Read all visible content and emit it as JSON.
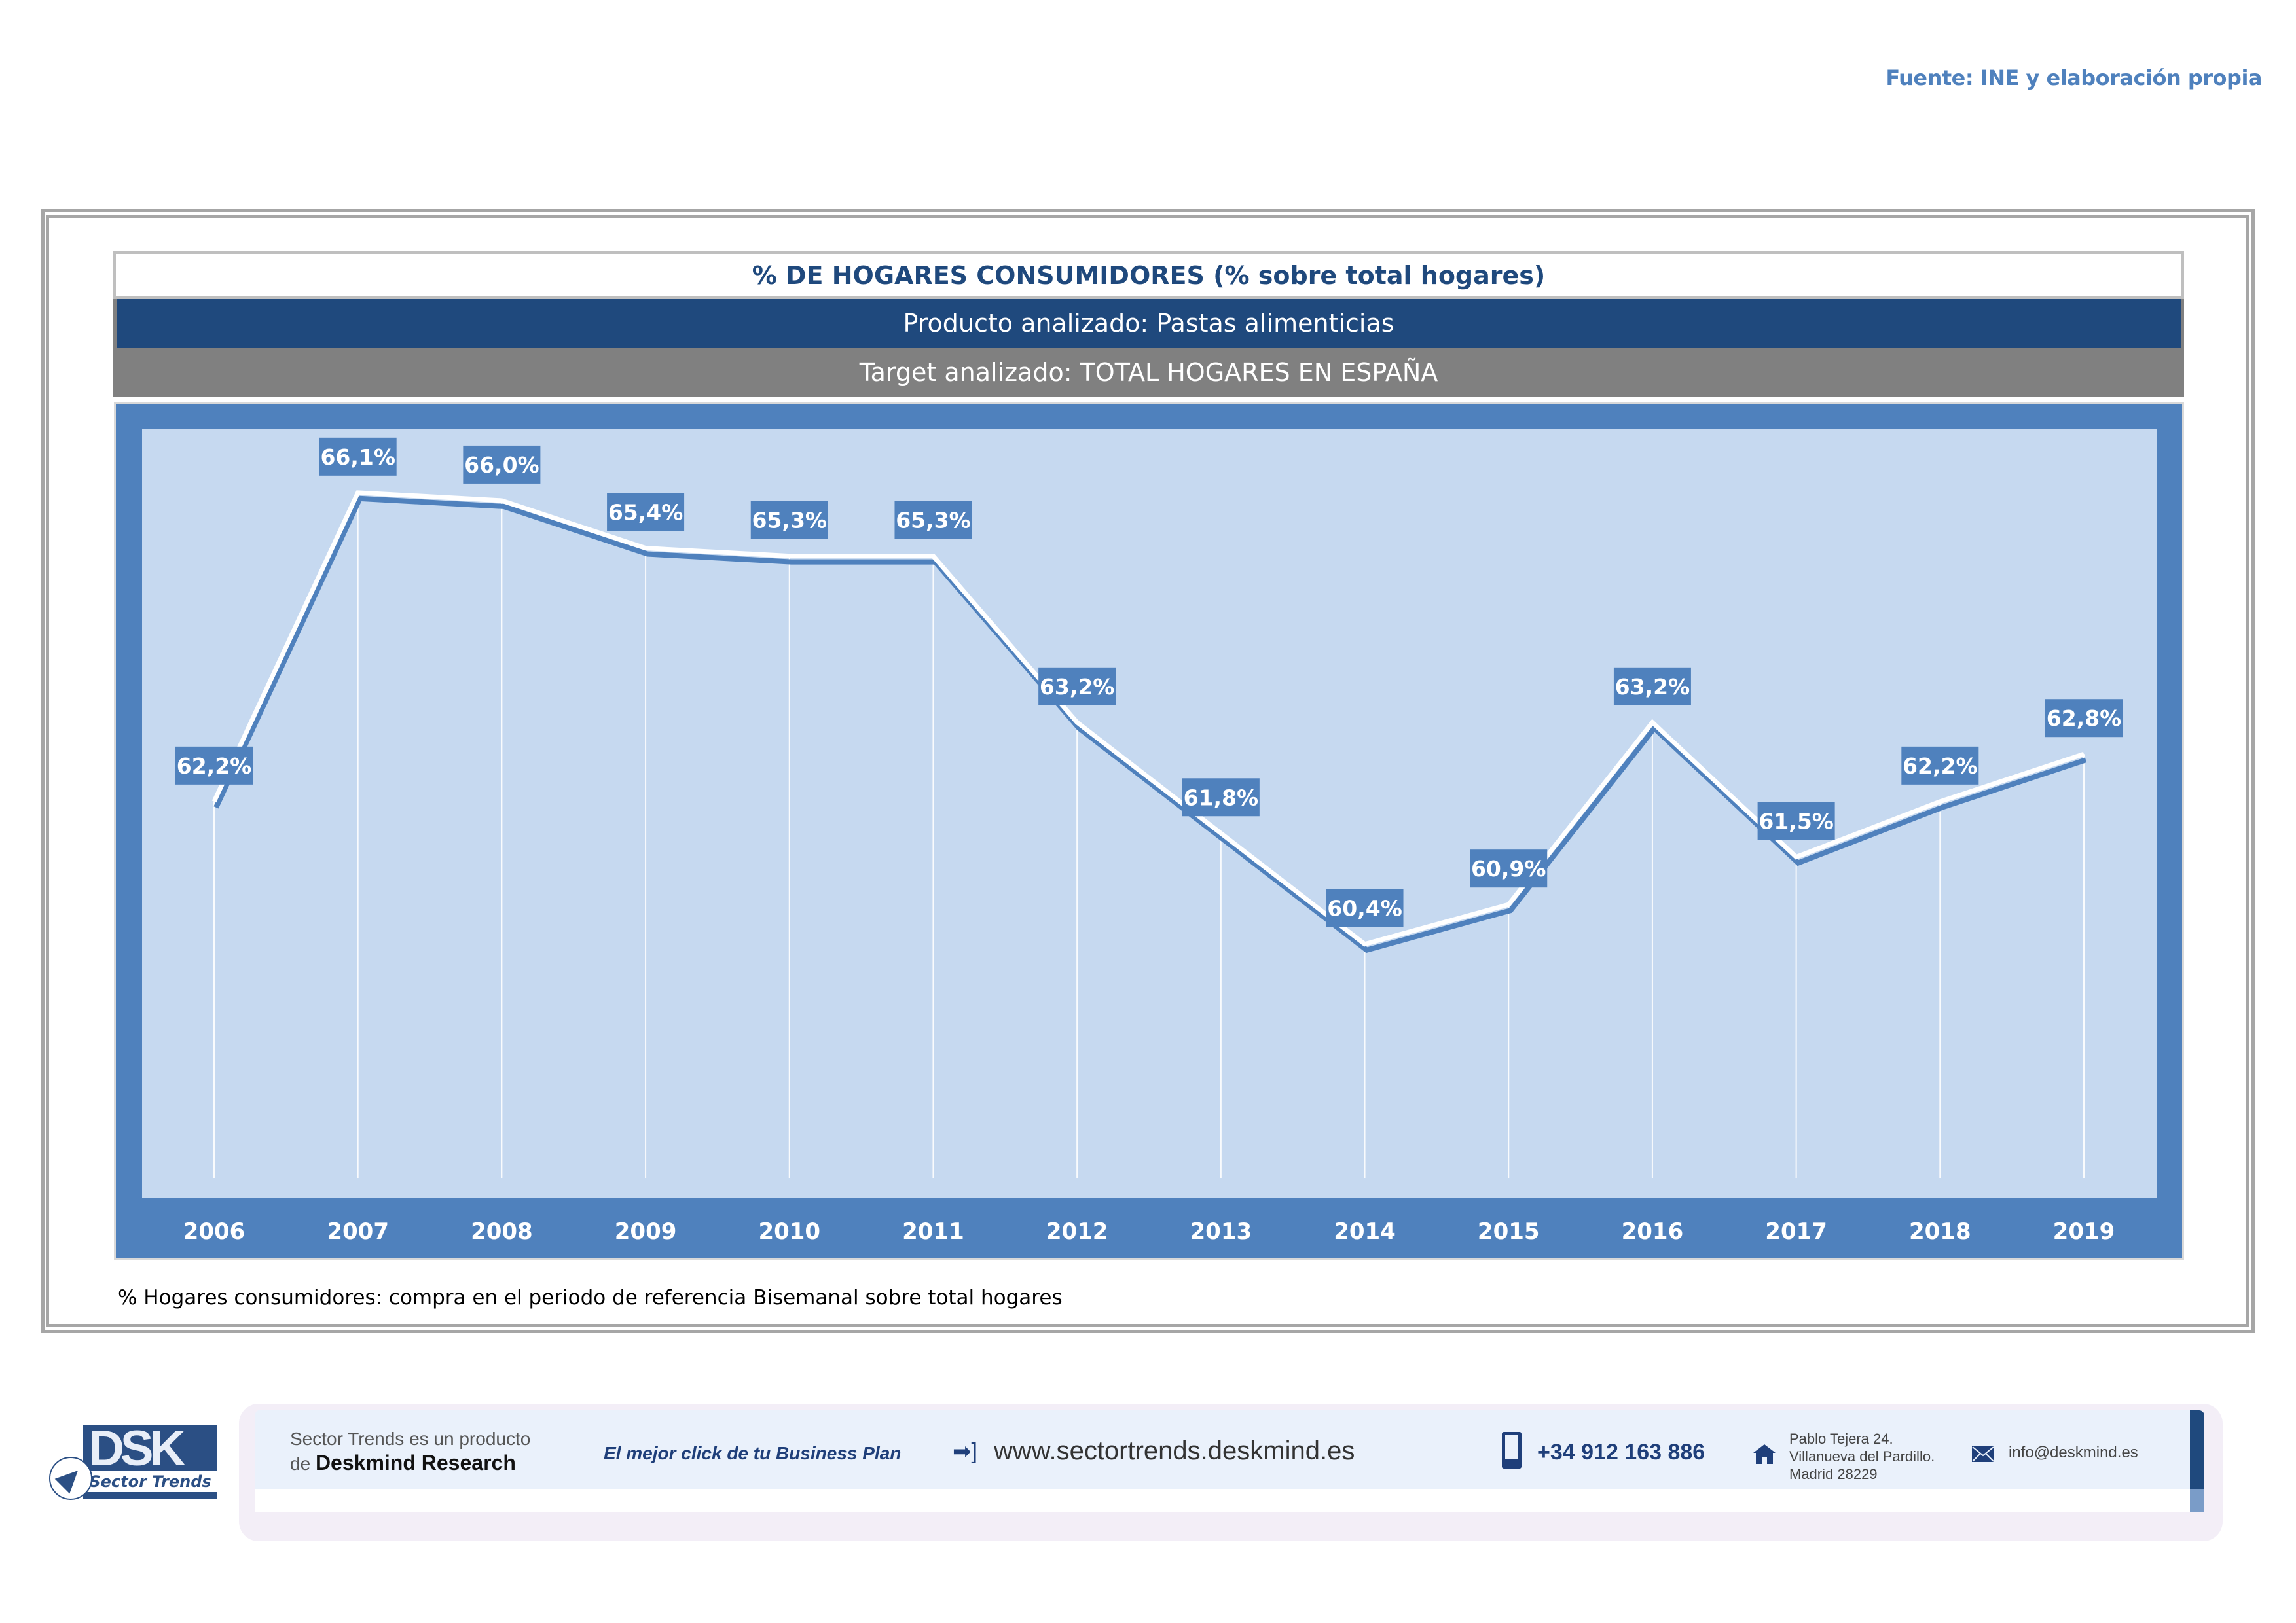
{
  "source": "Fuente: INE y elaboración propia",
  "header": {
    "title": "% DE HOGARES CONSUMIDORES (% sobre total hogares)",
    "product": "Producto analizado: Pastas alimenticias",
    "target": "Target analizado: TOTAL HOGARES EN ESPAÑA"
  },
  "footnote": "% Hogares consumidores: compra en el periodo de referencia Bisemanal sobre total hogares",
  "chart_data": {
    "type": "line",
    "title": "% DE HOGARES CONSUMIDORES (% sobre total hogares)",
    "xlabel": "",
    "ylabel": "",
    "categories": [
      "2006",
      "2007",
      "2008",
      "2009",
      "2010",
      "2011",
      "2012",
      "2013",
      "2014",
      "2015",
      "2016",
      "2017",
      "2018",
      "2019"
    ],
    "series": [
      {
        "name": "% Hogares consumidores",
        "values": [
          62.2,
          66.1,
          66.0,
          65.4,
          65.3,
          65.3,
          63.2,
          61.8,
          60.4,
          60.9,
          63.2,
          61.5,
          62.2,
          62.8
        ],
        "labels": [
          "62,2%",
          "66,1%",
          "66,0%",
          "65,4%",
          "65,3%",
          "65,3%",
          "63,2%",
          "61,8%",
          "60,4%",
          "60,9%",
          "63,2%",
          "61,5%",
          "62,2%",
          "62,8%"
        ]
      }
    ],
    "ylim": [
      57.2,
      66.9
    ],
    "grid": false,
    "drop_lines": true,
    "legend": "none",
    "colors": {
      "line": "#4f81bd",
      "line_highlight": "#ffffff",
      "label_bg": "#4f81bd",
      "plot_bg": "#c6d9f0",
      "frame": "#4f81bd"
    }
  },
  "footer": {
    "logo_text": "DSK",
    "logo_sub": "Sector Trends",
    "product_line1": "Sector Trends es un producto",
    "product_line2_prefix": "de",
    "product_line2_brand": "Deskmind Research",
    "slogan": "El mejor click de tu Business Plan",
    "website": "www.sectortrends.deskmind.es",
    "phone": "+34 912 163 886",
    "address": [
      "Pablo Tejera 24.",
      "Villanueva del Pardillo.",
      "Madrid 28229"
    ],
    "email": "info@deskmind.es",
    "icons": {
      "web": "arrow-bracket-icon",
      "phone": "mobile-phone-icon",
      "address": "house-icon",
      "email": "envelope-icon"
    }
  }
}
